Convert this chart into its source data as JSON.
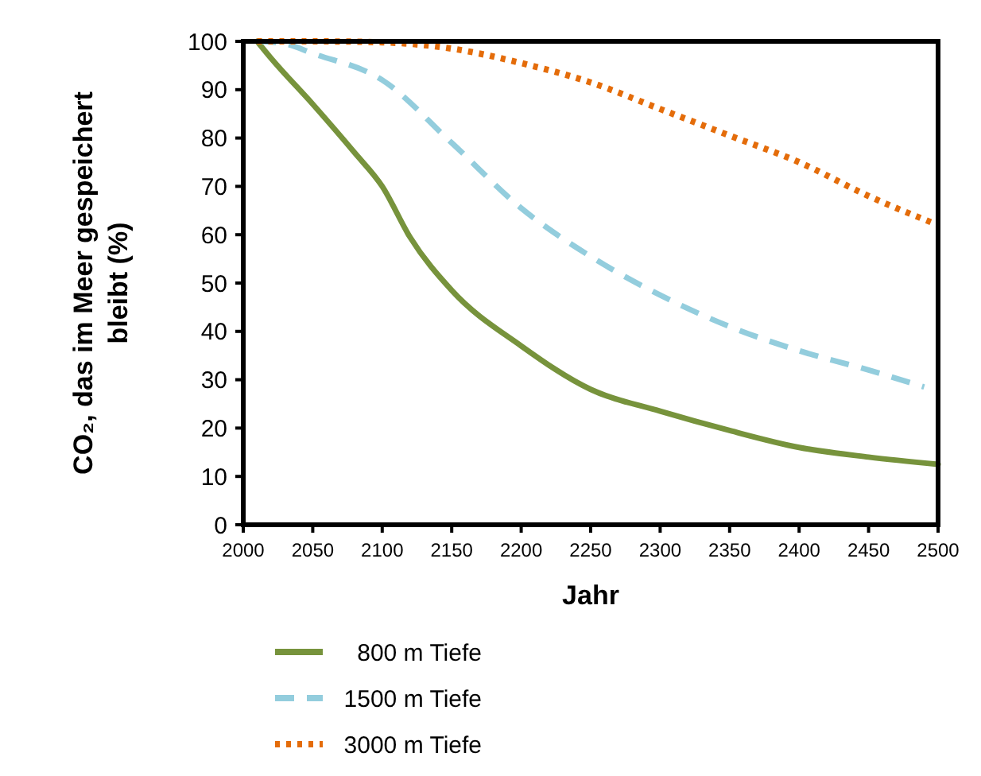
{
  "chart_data": {
    "type": "line",
    "xlabel": "Jahr",
    "ylabel": "CO₂, das im Meer gespeichert bleibt (%)",
    "xlim": [
      2000,
      2500
    ],
    "xticks": [
      2000,
      2050,
      2100,
      2150,
      2200,
      2250,
      2300,
      2350,
      2400,
      2450,
      2500
    ],
    "ylim": [
      0,
      100
    ],
    "yticks": [
      0,
      10,
      20,
      30,
      40,
      50,
      60,
      70,
      80,
      90,
      100
    ],
    "grid": false,
    "legend": "bottom",
    "series": [
      {
        "name": "800 m Tiefe",
        "color": "#77933c",
        "line_style": "solid",
        "x": [
          2010,
          2020,
          2050,
          2080,
          2100,
          2120,
          2150,
          2200,
          2250,
          2300,
          2350,
          2400,
          2450,
          2500
        ],
        "values": [
          100,
          96.5,
          87,
          77,
          70,
          59.5,
          48.5,
          37,
          28,
          23.5,
          19.5,
          16,
          14,
          12.5
        ]
      },
      {
        "name": "1500 m Tiefe",
        "color": "#93cddd",
        "line_style": "dashed",
        "x": [
          2010,
          2030,
          2050,
          2100,
          2150,
          2200,
          2250,
          2300,
          2350,
          2400,
          2450,
          2490
        ],
        "values": [
          100,
          99.5,
          97.5,
          92,
          79,
          65.5,
          55.5,
          47.5,
          41,
          36,
          32,
          28.5
        ]
      },
      {
        "name": "3000 m Tiefe",
        "color": "#e46c0a",
        "line_style": "dotted",
        "x": [
          2010,
          2050,
          2100,
          2150,
          2200,
          2250,
          2300,
          2350,
          2400,
          2450,
          2500
        ],
        "values": [
          100,
          100,
          99.8,
          98.5,
          95.5,
          91.5,
          86,
          80.5,
          75,
          68,
          62
        ]
      }
    ]
  }
}
